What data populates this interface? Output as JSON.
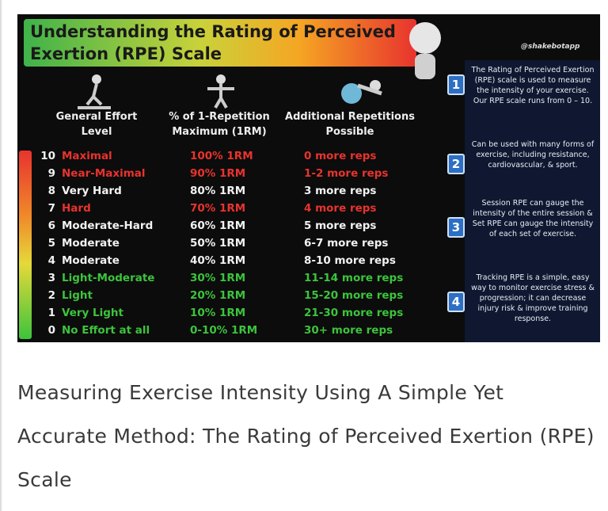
{
  "infographic": {
    "title": "Understanding the Rating of Perceived Exertion (RPE) Scale",
    "handle": "@shakebotapp",
    "headers": [
      "General Effort Level",
      "% of 1-Repetition Maximum (1RM)",
      "Additional Repetitions Possible"
    ],
    "rows": [
      {
        "level": "10",
        "effort": "Maximal",
        "percent": "100% 1RM",
        "reps": "0 more reps",
        "color": "#e8332e"
      },
      {
        "level": "9",
        "effort": "Near-Maximal",
        "percent": "90% 1RM",
        "reps": "1-2 more reps",
        "color": "#e8332e"
      },
      {
        "level": "8",
        "effort": "Very Hard",
        "percent": "80% 1RM",
        "reps": "3 more reps",
        "color": "#f2f2f2"
      },
      {
        "level": "7",
        "effort": "Hard",
        "percent": "70% 1RM",
        "reps": "4 more reps",
        "color": "#e8332e"
      },
      {
        "level": "6",
        "effort": "Moderate-Hard",
        "percent": "60% 1RM",
        "reps": "5 more reps",
        "color": "#f2f2f2"
      },
      {
        "level": "5",
        "effort": "Moderate",
        "percent": "50% 1RM",
        "reps": "6-7 more reps",
        "color": "#f2f2f2"
      },
      {
        "level": "4",
        "effort": "Moderate",
        "percent": "40% 1RM",
        "reps": "8-10 more reps",
        "color": "#f2f2f2"
      },
      {
        "level": "3",
        "effort": "Light-Moderate",
        "percent": "30% 1RM",
        "reps": "11-14 more reps",
        "color": "#3cc43c"
      },
      {
        "level": "2",
        "effort": "Light",
        "percent": "20% 1RM",
        "reps": "15-20 more reps",
        "color": "#3cc43c"
      },
      {
        "level": "1",
        "effort": "Very Light",
        "percent": "10% 1RM",
        "reps": "21-30 more reps",
        "color": "#3cc43c"
      },
      {
        "level": "0",
        "effort": "No Effort at all",
        "percent": "0-10% 1RM",
        "reps": "30+ more reps",
        "color": "#3cc43c"
      }
    ],
    "notes": [
      {
        "number": "1",
        "text": "The Rating of Perceived Exertion (RPE) scale is used to measure the intensity of your exercise. Our RPE scale runs from 0 – 10."
      },
      {
        "number": "2",
        "text": "Can be used with many forms of exercise, including resistance, cardiovascular, & sport."
      },
      {
        "number": "3",
        "text": "Session RPE can gauge the intensity of the entire session & Set RPE can gauge the intensity of each set of exercise."
      },
      {
        "number": "4",
        "text": "Tracking RPE is a simple, easy way to monitor exercise stress & progression; it can decrease injury risk & improve training response."
      }
    ]
  },
  "headline": "Measuring Exercise Intensity Using A Simple Yet Accurate Method: The Rating of Perceived Exertion (RPE) Scale"
}
